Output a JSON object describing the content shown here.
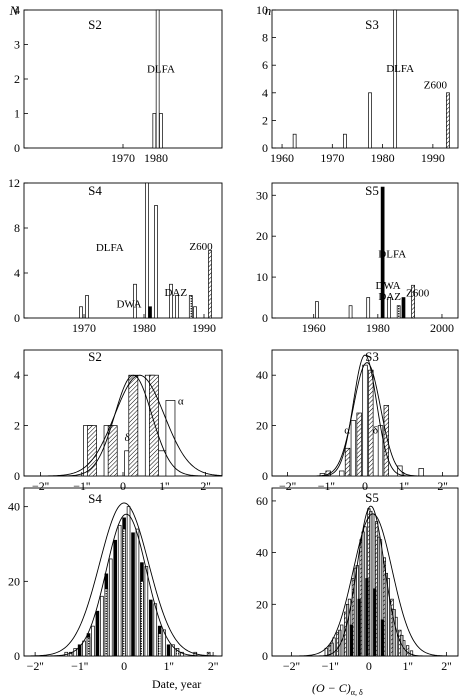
{
  "axis_labels": {
    "left_y": "N",
    "right_y": "n",
    "left_x": "Date, year",
    "right_x": "(O − C)",
    "right_x_sub": "α, δ"
  },
  "chart_data": [
    {
      "type": "bar",
      "panel": "left",
      "title": "S2",
      "xlim": [
        1940,
        2000
      ],
      "ylim": [
        0,
        4
      ],
      "x_ticks": [
        1970,
        1980
      ],
      "y_ticks": [
        0,
        1,
        2,
        3,
        4
      ],
      "series": [
        {
          "name": "DLFA",
          "pattern": "open",
          "x": [
            1979.5,
            1980.5,
            1981.5
          ],
          "values": [
            1,
            4,
            1
          ]
        }
      ],
      "annotations": [
        {
          "text": "DLFA",
          "x": 1981.5,
          "y": 2.3
        }
      ]
    },
    {
      "type": "bar",
      "panel": "left",
      "title": "S3",
      "xlim": [
        1958,
        1995
      ],
      "ylim": [
        0,
        10
      ],
      "x_ticks": [
        1960,
        1970,
        1980,
        1990
      ],
      "y_ticks": [
        0,
        2,
        4,
        6,
        8,
        10
      ],
      "series": [
        {
          "name": "DLFA",
          "pattern": "open",
          "x": [
            1962.5,
            1972.5,
            1977.5,
            1982.5
          ],
          "values": [
            1,
            1,
            4,
            10
          ]
        },
        {
          "name": "Z600",
          "pattern": "hatched",
          "x": [
            1993
          ],
          "values": [
            4
          ]
        }
      ],
      "annotations": [
        {
          "text": "DLFA",
          "x": 1983.5,
          "y": 5.8
        },
        {
          "text": "Z600",
          "x": 1990.5,
          "y": 4.6
        }
      ]
    },
    {
      "type": "bar",
      "panel": "left",
      "title": "S4",
      "xlim": [
        1960,
        1993
      ],
      "ylim": [
        0,
        12
      ],
      "x_ticks": [
        1970,
        1980,
        1990
      ],
      "y_ticks": [
        0,
        4,
        8,
        12
      ],
      "series": [
        {
          "name": "DLFA",
          "pattern": "open",
          "x": [
            1969.5,
            1970.5,
            1978.5,
            1980.5,
            1982,
            1984.5,
            1985.5,
            1988.5
          ],
          "values": [
            1,
            2,
            3,
            12,
            10,
            3,
            2,
            1
          ]
        },
        {
          "name": "DWA",
          "pattern": "black",
          "x": [
            1981
          ],
          "values": [
            1
          ]
        },
        {
          "name": "DAZ",
          "pattern": "dotted",
          "x": [
            1987.8
          ],
          "values": [
            2
          ]
        },
        {
          "name": "Z600",
          "pattern": "hatched",
          "x": [
            1991
          ],
          "values": [
            6
          ]
        }
      ],
      "annotations": [
        {
          "text": "DLFA",
          "x": 1974.3,
          "y": 6.3
        },
        {
          "text": "DWA",
          "x": 1977.5,
          "y": 1.3
        },
        {
          "text": "DAZ",
          "x": 1985.3,
          "y": 2.3
        },
        {
          "text": "Z600",
          "x": 1989.5,
          "y": 6.4
        }
      ]
    },
    {
      "type": "bar",
      "panel": "left",
      "title": "S5",
      "xlim": [
        1947,
        2005
      ],
      "ylim": [
        0,
        33
      ],
      "x_ticks": [
        1960,
        1980,
        2000
      ],
      "y_ticks": [
        0,
        10,
        20,
        30
      ],
      "series": [
        {
          "name": "DLFA",
          "pattern": "open",
          "x": [
            1961,
            1971.5,
            1977,
            1983.5
          ],
          "values": [
            4,
            3,
            5,
            5
          ]
        },
        {
          "name": "DLFA",
          "pattern": "black",
          "x": [
            1981.5
          ],
          "values": [
            32
          ]
        },
        {
          "name": "DWA",
          "pattern": "black",
          "x": [
            1988
          ],
          "values": [
            5
          ]
        },
        {
          "name": "DAZ",
          "pattern": "dotted",
          "x": [
            1986.5
          ],
          "values": [
            3
          ]
        },
        {
          "name": "Z600",
          "pattern": "hatched",
          "x": [
            1991
          ],
          "values": [
            8
          ]
        }
      ],
      "annotations": [
        {
          "text": "DLFA",
          "x": 1984.5,
          "y": 15.8
        },
        {
          "text": "DWA",
          "x": 1983.2,
          "y": 8.1
        },
        {
          "text": "DAZ",
          "x": 1983.7,
          "y": 5.4
        },
        {
          "text": "Z600",
          "x": 1992.4,
          "y": 6.2
        }
      ]
    },
    {
      "type": "bar",
      "panel": "right",
      "title": "S2",
      "xlim": [
        -2.4,
        2.4
      ],
      "ylim": [
        0,
        5
      ],
      "x_ticks": [
        -2,
        -1,
        0,
        1,
        2
      ],
      "x_tick_labels": [
        "−2''",
        "−1''",
        "0",
        "1''",
        "2''"
      ],
      "y_ticks": [
        0,
        2,
        4
      ],
      "bin_width": 0.22,
      "series": [
        {
          "name": "α",
          "pattern": "open",
          "x": [
            -0.85,
            -0.35,
            0.15,
            0.65,
            0.95,
            1.15
          ],
          "values": [
            2,
            2,
            1,
            4,
            1,
            3
          ]
        },
        {
          "name": "δ",
          "pattern": "hatched",
          "x": [
            -0.75,
            -0.25,
            0.25,
            0.75
          ],
          "values": [
            2,
            2,
            4,
            4
          ]
        }
      ],
      "curves": [
        {
          "amplitude": 4,
          "mean": 0.25,
          "sigma": 0.45
        },
        {
          "amplitude": 4,
          "mean": 0.4,
          "sigma": 0.6
        }
      ],
      "annotations": [
        {
          "text": "α",
          "x": 1.4,
          "y": 3
        },
        {
          "text": "δ",
          "x": 0.1,
          "y": 1.55
        }
      ]
    },
    {
      "type": "bar",
      "panel": "right",
      "title": "S3",
      "xlim": [
        -2.4,
        2.4
      ],
      "ylim": [
        0,
        50
      ],
      "x_ticks": [
        -2,
        -1,
        0,
        1,
        2
      ],
      "x_tick_labels": [
        "−2''",
        "−1''",
        "0",
        "1''",
        "2''"
      ],
      "y_ticks": [
        0,
        20,
        40
      ],
      "bin_width": 0.12,
      "series": [
        {
          "name": "α",
          "pattern": "open",
          "x": [
            -1.1,
            -0.6,
            -0.3,
            0.0,
            0.4,
            0.9,
            1.45
          ],
          "values": [
            1,
            2,
            22,
            44,
            20,
            4,
            3
          ]
        },
        {
          "name": "δ",
          "pattern": "hatched",
          "x": [
            -0.95,
            -0.45,
            -0.15,
            0.15,
            0.55
          ],
          "values": [
            2,
            11,
            25,
            42,
            28
          ]
        }
      ],
      "curves": [
        {
          "amplitude": 48,
          "mean": 0.0,
          "sigma": 0.3
        },
        {
          "amplitude": 45,
          "mean": 0.05,
          "sigma": 0.35
        }
      ],
      "annotations": [
        {
          "text": "α",
          "x": -0.46,
          "y": 18.5
        },
        {
          "text": "δ",
          "x": 0.27,
          "y": 18.5
        }
      ]
    },
    {
      "type": "bar",
      "panel": "right",
      "title": "S4",
      "xlim": [
        -2.25,
        2.2
      ],
      "ylim": [
        0,
        45
      ],
      "x_ticks": [
        -2,
        -1,
        0,
        1,
        2
      ],
      "x_tick_labels": [
        "−2''",
        "−1''",
        "0",
        "1''",
        "2''"
      ],
      "y_ticks": [
        0,
        20,
        40
      ],
      "bin_width": 0.065,
      "series": [
        {
          "name": "α",
          "pattern": "open",
          "x": [
            -1.3,
            -1.1,
            -0.9,
            -0.7,
            -0.5,
            -0.3,
            -0.1,
            0.1,
            0.3,
            0.5,
            0.7,
            0.9,
            1.1,
            1.3
          ],
          "values": [
            1,
            2,
            4,
            8,
            16,
            26,
            35,
            40,
            34,
            24,
            14,
            7,
            3,
            1
          ]
        },
        {
          "name": "δ",
          "pattern": "black",
          "x": [
            -1.0,
            -0.8,
            -0.6,
            -0.4,
            -0.2,
            0.0,
            0.2,
            0.4,
            0.6,
            0.8,
            1.0
          ],
          "values": [
            3,
            6,
            12,
            22,
            31,
            37,
            33,
            25,
            15,
            8,
            3
          ]
        },
        {
          "name": "",
          "pattern": "dotted",
          "x": [
            -1.2,
            -0.8,
            -0.4,
            0.0,
            0.4,
            0.8,
            1.2,
            1.6,
            1.9
          ],
          "values": [
            1,
            5,
            18,
            34,
            20,
            6,
            2,
            1,
            1
          ]
        }
      ],
      "curves": [
        {
          "amplitude": 38,
          "mean": 0.05,
          "sigma": 0.45
        },
        {
          "amplitude": 41,
          "mean": 0.0,
          "sigma": 0.55
        }
      ],
      "annotations": []
    },
    {
      "type": "bar",
      "panel": "right",
      "title": "S5",
      "xlim": [
        -2.5,
        2.3
      ],
      "ylim": [
        0,
        65
      ],
      "x_ticks": [
        -2,
        -1,
        0,
        1,
        2
      ],
      "x_tick_labels": [
        "−2''",
        "−1''",
        "0",
        "1''",
        "2''"
      ],
      "y_ticks": [
        0,
        20,
        40,
        60
      ],
      "bin_width": 0.065,
      "series": [
        {
          "name": "α",
          "pattern": "open",
          "x": [
            -1.1,
            -0.9,
            -0.7,
            -0.5,
            -0.3,
            -0.1,
            0.1,
            0.3,
            0.5,
            0.7,
            0.9,
            1.1
          ],
          "values": [
            3,
            7,
            12,
            22,
            35,
            50,
            55,
            45,
            30,
            15,
            6,
            2
          ]
        },
        {
          "name": "δ",
          "pattern": "hatched",
          "x": [
            -1.0,
            -0.8,
            -0.6,
            -0.4,
            -0.2,
            0.0,
            0.2,
            0.4,
            0.6,
            0.8,
            1.0
          ],
          "values": [
            4,
            9,
            17,
            30,
            45,
            57,
            52,
            38,
            22,
            10,
            4
          ]
        },
        {
          "name": "",
          "pattern": "gray",
          "x": [
            -0.95,
            -0.75,
            -0.55,
            -0.35,
            -0.15,
            0.05,
            0.25,
            0.45,
            0.65,
            0.85
          ],
          "values": [
            5,
            10,
            20,
            34,
            48,
            56,
            46,
            32,
            18,
            8
          ]
        },
        {
          "name": "",
          "pattern": "black",
          "x": [
            -0.45,
            -0.25,
            -0.05,
            0.15,
            0.35
          ],
          "values": [
            12,
            22,
            30,
            26,
            14
          ]
        }
      ],
      "curves": [
        {
          "amplitude": 58,
          "mean": 0.05,
          "sigma": 0.35
        },
        {
          "amplitude": 55,
          "mean": 0.1,
          "sigma": 0.5
        }
      ],
      "annotations": []
    }
  ]
}
